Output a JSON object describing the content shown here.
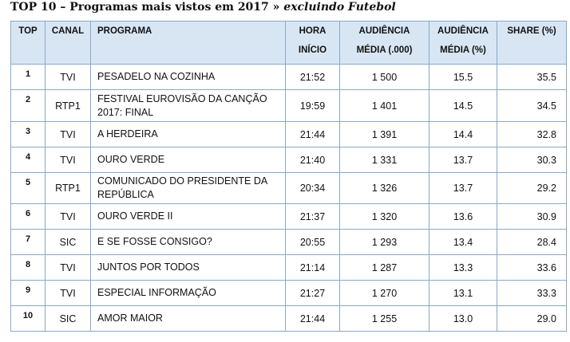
{
  "title": {
    "main": "TOP 10 – Programas mais vistos em 2017 » ",
    "emphasis": "excluindo Futebol"
  },
  "table": {
    "headers": {
      "top": "TOP",
      "canal": "CANAL",
      "programa": "PROGRAMA",
      "hora_1": "HORA",
      "hora_2": "INÍCIO",
      "aud_1": "AUDIÊNCIA",
      "aud_2": "MÉDIA (.000)",
      "audpct_1": "AUDIÊNCIA",
      "audpct_2": "MÉDIA (%)",
      "share": "SHARE (%)"
    },
    "rows": [
      {
        "top": "1",
        "canal": "TVI",
        "programa": "PESADELO NA COZINHA",
        "hora": "21:52",
        "audiencia": "1 500",
        "media_pct": "15.5",
        "share": "35.5"
      },
      {
        "top": "2",
        "canal": "RTP1",
        "programa": "FESTIVAL EUROVISÃO DA CANÇÃO 2017: FINAL",
        "hora": "19:59",
        "audiencia": "1 401",
        "media_pct": "14.5",
        "share": "34.5"
      },
      {
        "top": "3",
        "canal": "TVI",
        "programa": "A HERDEIRA",
        "hora": "21:44",
        "audiencia": "1 391",
        "media_pct": "14.4",
        "share": "32.8"
      },
      {
        "top": "4",
        "canal": "TVI",
        "programa": "OURO VERDE",
        "hora": "21:40",
        "audiencia": "1 331",
        "media_pct": "13.7",
        "share": "30.3"
      },
      {
        "top": "5",
        "canal": "RTP1",
        "programa": "COMUNICADO DO PRESIDENTE DA REPÚBLICA",
        "hora": "20:34",
        "audiencia": "1 326",
        "media_pct": "13.7",
        "share": "29.2"
      },
      {
        "top": "6",
        "canal": "TVI",
        "programa": "OURO VERDE II",
        "hora": "21:37",
        "audiencia": "1 320",
        "media_pct": "13.6",
        "share": "30.9"
      },
      {
        "top": "7",
        "canal": "SIC",
        "programa": "E SE FOSSE CONSIGO?",
        "hora": "20:55",
        "audiencia": "1 293",
        "media_pct": "13.4",
        "share": "28.4"
      },
      {
        "top": "8",
        "canal": "TVI",
        "programa": "JUNTOS POR TODOS",
        "hora": "21:14",
        "audiencia": "1 287",
        "media_pct": "13.3",
        "share": "33.6"
      },
      {
        "top": "9",
        "canal": "TVI",
        "programa": "ESPECIAL INFORMAÇÃO",
        "hora": "21:27",
        "audiencia": "1 270",
        "media_pct": "13.1",
        "share": "33.3"
      },
      {
        "top": "10",
        "canal": "SIC",
        "programa": "AMOR MAIOR",
        "hora": "21:44",
        "audiencia": "1 255",
        "media_pct": "13.0",
        "share": "29.0"
      }
    ]
  },
  "colors": {
    "header_bg": "#d8e6f3",
    "border": "#8aa8c8"
  }
}
